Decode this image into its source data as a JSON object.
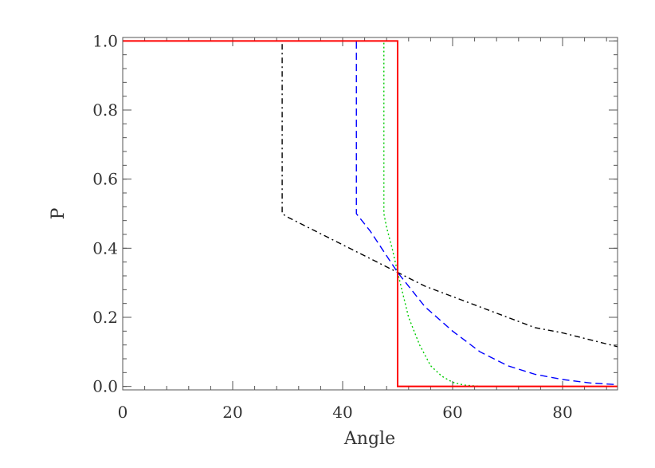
{
  "chart_data": {
    "type": "line",
    "title": "",
    "xlabel": "Angle",
    "ylabel": "P",
    "xlim": [
      0,
      90
    ],
    "ylim": [
      -0.01,
      1.01
    ],
    "xticks": [
      0,
      20,
      40,
      60,
      80
    ],
    "xtick_labels": [
      "0",
      "20",
      "40",
      "60",
      "80"
    ],
    "yticks": [
      0.0,
      0.2,
      0.4,
      0.6,
      0.8,
      1.0
    ],
    "ytick_labels": [
      "0.0",
      "0.2",
      "0.4",
      "0.6",
      "0.8",
      "1.0"
    ],
    "x_minor_step": 4,
    "y_minor_step": 0.04,
    "grid": false,
    "legend": "none",
    "series": [
      {
        "color": "#000000",
        "style": "dash-dot",
        "x": [
          0,
          29,
          29,
          30,
          35,
          40,
          45,
          50,
          55,
          60,
          65,
          70,
          75,
          80,
          85,
          90
        ],
        "y": [
          1.0,
          1.0,
          0.5,
          0.49,
          0.45,
          0.41,
          0.37,
          0.33,
          0.29,
          0.26,
          0.23,
          0.2,
          0.17,
          0.155,
          0.135,
          0.115
        ]
      },
      {
        "color": "#0000ff",
        "style": "dashed",
        "x": [
          0,
          42.5,
          42.5,
          45,
          50,
          55,
          60,
          65,
          70,
          75,
          80,
          85,
          90
        ],
        "y": [
          1.0,
          1.0,
          0.5,
          0.45,
          0.33,
          0.23,
          0.16,
          0.1,
          0.06,
          0.035,
          0.02,
          0.01,
          0.005
        ]
      },
      {
        "color": "#00cc00",
        "style": "dotted",
        "x": [
          0,
          47.5,
          47.5,
          48,
          49,
          50,
          52,
          54,
          56,
          58,
          60,
          62,
          65,
          90
        ],
        "y": [
          1.0,
          1.0,
          0.5,
          0.46,
          0.4,
          0.33,
          0.2,
          0.12,
          0.06,
          0.03,
          0.012,
          0.004,
          0.0,
          0.0
        ]
      },
      {
        "color": "#ff0000",
        "style": "solid",
        "x": [
          0,
          50,
          50,
          90
        ],
        "y": [
          1.0,
          1.0,
          0.0,
          0.0
        ]
      }
    ]
  }
}
